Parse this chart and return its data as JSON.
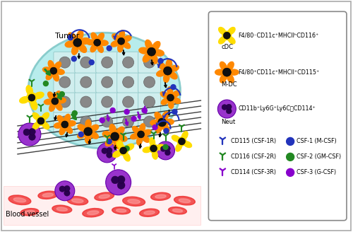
{
  "fig_width": 5.0,
  "fig_height": 3.28,
  "dpi": 100,
  "bg_color": "#ffffff",
  "tumor_color": "#b0eaea",
  "tumor_border": "#80c8c8",
  "orange_cell_color": "#ff8800",
  "yellow_cell_color": "#ffdd00",
  "neutrophil_color": "#9933cc",
  "neutrophil_dark": "#6600aa",
  "rbc_color_dark": "#ee2222",
  "rbc_color_light": "#ffaaaa",
  "green_color": "#228822",
  "blue_color": "#2233bb",
  "purple_color": "#8800cc",
  "black_color": "#111111",
  "tumor_label": "Tumor",
  "blood_label": "Blood vessel",
  "cdc_label": "F4/80⁻CD11c⁺MHCIIʰCD116⁺",
  "cdc_sublabel": "cDC",
  "mdc_label": "F4/80⁺CD11c⁺MHCII⁺CD115⁺",
  "mdc_sublabel": "M-DC",
  "neut_label": "CD11b⁺Ly6G⁺Ly6CᴯCD114⁺",
  "neut_sublabel": "Neut",
  "r1_label": "CD115 (CSF-1R)",
  "r1_csf": "CSF-1 (M-CSF)",
  "r1_rcol": "#2233bb",
  "r1_ccol": "#2233bb",
  "r2_label": "CD116 (CSF-2R)",
  "r2_csf": "CSF-2 (GM-CSF)",
  "r2_rcol": "#228822",
  "r2_ccol": "#228822",
  "r3_label": "CD114 (CSF-3R)",
  "r3_csf": "CSF-3 (G-CSF)",
  "r3_rcol": "#8800cc",
  "r3_ccol": "#8800cc"
}
